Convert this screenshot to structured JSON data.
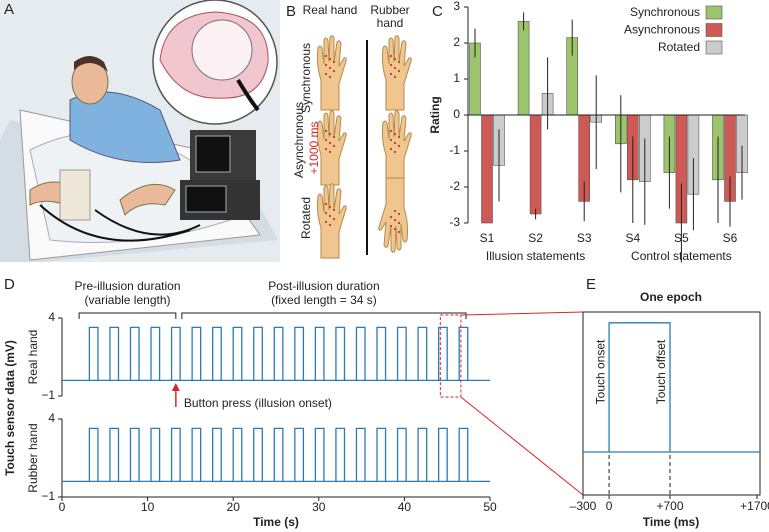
{
  "illustrations": {
    "a": {
      "label": "A"
    },
    "b": {
      "label": "B",
      "columns": [
        "Real hand",
        "Rubber hand"
      ],
      "rows": [
        "Synchronous",
        "Asynchronous",
        "Rotated"
      ],
      "delay": "+1000 ms"
    }
  },
  "chart_data": [
    {
      "type": "bar",
      "label": "C",
      "ylabel": "Rating",
      "categories": [
        "S1",
        "S2",
        "S3",
        "S4",
        "S5",
        "S6"
      ],
      "groups": [
        {
          "label": "Illusion statements",
          "categories": [
            0,
            2
          ]
        },
        {
          "label": "Control statements",
          "categories": [
            3,
            5
          ]
        }
      ],
      "series": [
        {
          "name": "Synchronous",
          "color": "#9cc46c",
          "values": [
            2.0,
            2.6,
            2.15,
            -0.8,
            -1.6,
            -1.8
          ],
          "errors": [
            0.4,
            0.25,
            0.5,
            1.35,
            1.0,
            1.2
          ]
        },
        {
          "name": "Asynchronous",
          "color": "#cf5a55",
          "values": [
            -3.0,
            -2.75,
            -2.4,
            -1.8,
            -3.0,
            -2.4
          ],
          "errors": [
            0.0,
            0.15,
            0.55,
            1.2,
            1.1,
            0.7
          ]
        },
        {
          "name": "Rotated",
          "color": "#cccccc",
          "values": [
            -1.4,
            0.6,
            -0.2,
            -1.85,
            -2.2,
            -1.6
          ],
          "errors": [
            1.0,
            1.0,
            1.3,
            1.2,
            1.0,
            0.75
          ]
        }
      ],
      "ylim": [
        -3,
        3
      ],
      "yticks": [
        -3,
        -2,
        -1,
        0,
        1,
        2,
        3
      ],
      "legend": "upper right"
    },
    {
      "type": "pulse",
      "label": "D",
      "xlabel": "Time (s)",
      "ylabel": "Touch sensor data (mV)",
      "xlim": [
        0,
        50
      ],
      "xticks": [
        0,
        10,
        20,
        30,
        40,
        50
      ],
      "ylim": [
        -1,
        4
      ],
      "yticks": [
        {
          "value": -1,
          "label": "−1"
        },
        4
      ],
      "series": [
        {
          "name": "Real hand",
          "color": "#2b7bba",
          "low": 0,
          "high": 3.4,
          "duration": 1.0,
          "onsets": [
            3.2,
            5.6,
            8.0,
            10.4,
            12.8,
            15.2,
            17.6,
            20.0,
            22.4,
            24.8,
            27.2,
            29.6,
            32.0,
            34.4,
            36.8,
            39.2,
            41.6,
            44.0,
            46.4
          ]
        },
        {
          "name": "Rubber hand",
          "color": "#2b7bba",
          "low": 0,
          "high": 3.4,
          "duration": 1.0,
          "onsets": [
            3.2,
            5.6,
            8.0,
            10.4,
            12.8,
            15.2,
            17.6,
            20.0,
            22.4,
            24.8,
            27.2,
            29.6,
            32.0,
            34.4,
            36.8,
            39.2,
            41.6,
            44.0,
            46.4
          ]
        }
      ],
      "brackets": [
        {
          "text": [
            "Pre-illusion duration",
            "(variable length)"
          ],
          "x": [
            2,
            13.3
          ]
        },
        {
          "text": [
            "Post-illusion duration",
            "(fixed length = 34 s)"
          ],
          "x": [
            14,
            47.2
          ]
        }
      ],
      "button_press": {
        "text": "Button press (illusion onset)",
        "x": 13.3
      },
      "epoch_box": [
        44.2,
        46.6
      ]
    },
    {
      "type": "epoch",
      "label": "E",
      "title": "One epoch",
      "xlabel": "Time (ms)",
      "xlim": [
        -300,
        1700
      ],
      "xticks": [
        {
          "value": -300,
          "label": "–300"
        },
        0,
        {
          "value": 700,
          "label": "+700"
        },
        {
          "value": 1700,
          "label": "+1700"
        }
      ],
      "ylim": [
        -1,
        4
      ],
      "color": "#2b7bba",
      "low": 0,
      "high": 3.4,
      "onset": {
        "x": 0,
        "text": "Touch onset"
      },
      "offset": {
        "x": 700,
        "text": "Touch offset"
      }
    }
  ]
}
